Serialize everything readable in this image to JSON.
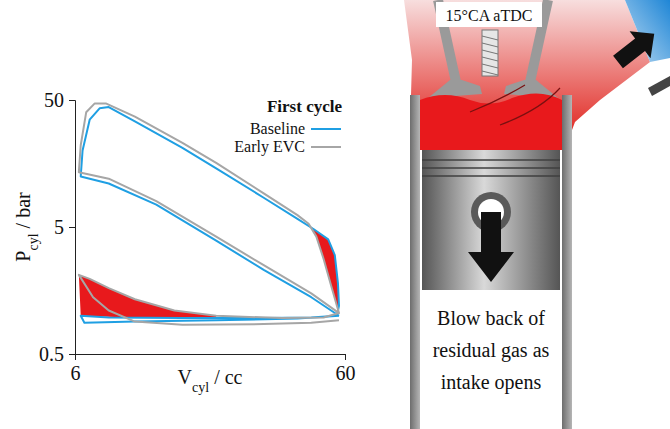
{
  "chart_data": {
    "type": "line",
    "log": true,
    "x_label": {
      "text": "V",
      "sub": "cyl",
      "suffix": " / cc"
    },
    "y_label": {
      "text": "P",
      "sub": "cyl",
      "suffix": " / bar"
    },
    "xlim": [
      6,
      60
    ],
    "ylim": [
      0.5,
      50
    ],
    "xticks": [
      6,
      60
    ],
    "yticks": [
      0.5,
      5,
      50
    ],
    "legend": "upper right",
    "legend_title": "First cycle",
    "series": [
      {
        "name": "Baseline",
        "color": "#1f9fe3",
        "x": [
          57,
          45,
          30,
          20,
          12,
          8,
          6.3,
          6.4,
          6.8,
          7.4,
          8,
          10,
          15,
          20,
          30,
          40,
          46,
          52,
          55,
          56.5,
          57,
          56,
          45,
          30,
          15,
          8,
          6.3,
          6.5,
          10,
          20,
          40,
          57
        ],
        "values": [
          1.0,
          1.4,
          2.3,
          3.9,
          7.5,
          11,
          12.5,
          20,
          35,
          43,
          44,
          34,
          21,
          14.5,
          8.5,
          5.8,
          4.8,
          4.0,
          3.0,
          1.8,
          1.2,
          1.0,
          0.97,
          0.96,
          0.96,
          0.97,
          1.0,
          0.88,
          0.9,
          0.92,
          0.95,
          1.0
        ]
      },
      {
        "name": "Early EVC",
        "color": "#a6a6a6",
        "x": [
          57,
          45,
          30,
          20,
          12,
          8,
          6.2,
          6.3,
          6.6,
          7.1,
          7.8,
          10,
          15,
          20,
          30,
          40,
          44,
          47,
          50,
          53,
          56,
          57,
          50,
          35,
          20,
          14,
          10,
          8,
          6.8,
          6.2,
          7,
          8,
          10,
          15,
          30,
          45,
          57
        ],
        "values": [
          1.05,
          1.5,
          2.5,
          4.2,
          8,
          12,
          13.5,
          22,
          40,
          47,
          47,
          37,
          23,
          16,
          9.2,
          6.2,
          5.3,
          4.2,
          2.8,
          1.8,
          1.2,
          1.05,
          0.97,
          0.96,
          1.0,
          1.1,
          1.35,
          1.65,
          1.95,
          2.1,
          1.4,
          1.1,
          0.9,
          0.85,
          0.86,
          0.88,
          0.92
        ]
      }
    ],
    "shaded": [
      {
        "color": "#e8191c",
        "x": [
          44,
          47,
          50,
          53,
          56,
          57,
          57,
          56.5,
          55,
          52,
          46,
          44
        ],
        "values": [
          5.3,
          4.2,
          2.8,
          1.8,
          1.2,
          1.05,
          1.2,
          1.8,
          3.0,
          4.0,
          4.8,
          5.1
        ]
      },
      {
        "color": "#e8191c",
        "x": [
          6.2,
          6.8,
          8,
          10,
          14,
          20,
          20,
          10,
          6.3
        ],
        "values": [
          2.1,
          1.95,
          1.65,
          1.35,
          1.1,
          1.0,
          0.96,
          0.965,
          1.0
        ]
      }
    ],
    "annotations": [
      "15°CA aTDC",
      "Blow back of residual gas as intake opens"
    ]
  }
}
